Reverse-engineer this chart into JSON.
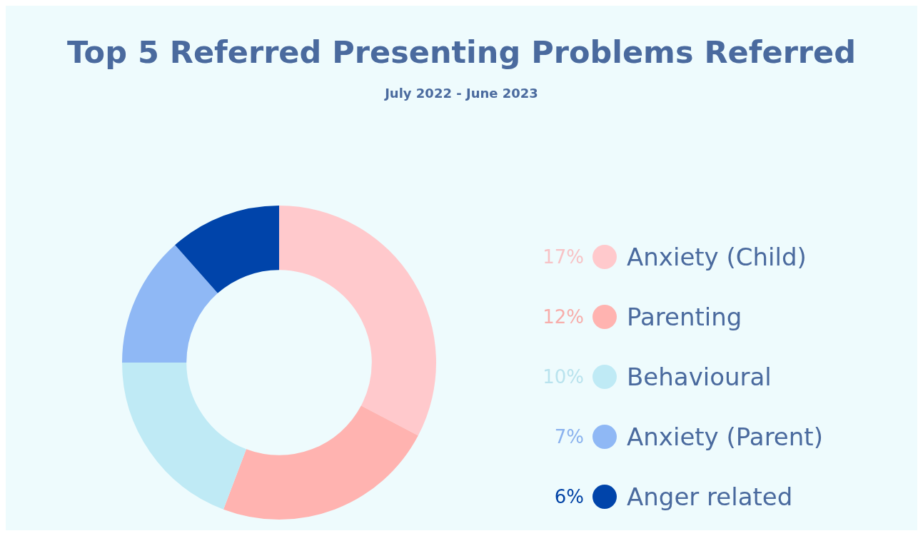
{
  "chart_data": {
    "type": "donut",
    "title": "Top 5 Referred Presenting Problems Referred",
    "subtitle": "July 2022 - June 2023",
    "categories": [
      "Anxiety (Child)",
      "Parenting",
      "Behavioural",
      "Anxiety (Parent)",
      "Anger related"
    ],
    "values": [
      17,
      12,
      10,
      7,
      6
    ],
    "value_labels": [
      "17%",
      "12%",
      "10%",
      "7%",
      "6%"
    ],
    "colors": [
      "#ffc9cc",
      "#ffb3b0",
      "#bfeaf5",
      "#8fb8f5",
      "#0044aa"
    ],
    "legend": "right"
  }
}
